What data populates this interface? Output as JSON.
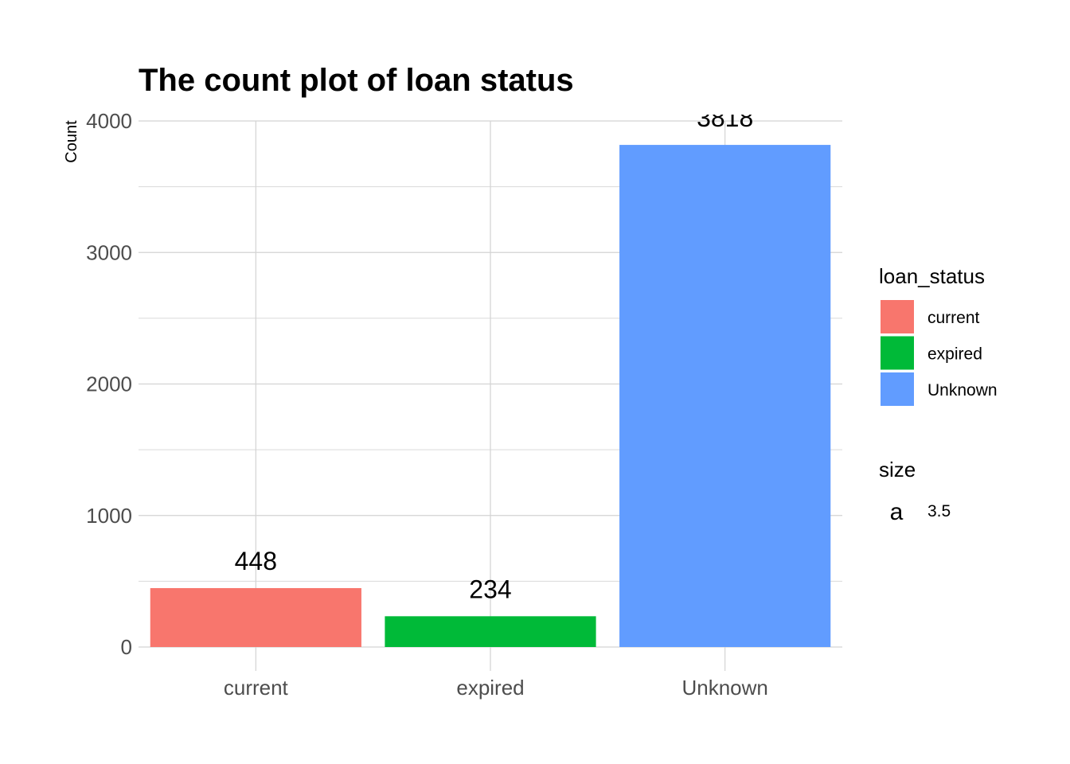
{
  "chart_data": {
    "type": "bar",
    "title": "The count plot of loan status",
    "xlabel": "",
    "ylabel": "Count",
    "categories": [
      "current",
      "expired",
      "Unknown"
    ],
    "values": [
      448,
      234,
      3818
    ],
    "data_labels": [
      "448",
      "234",
      "3818"
    ],
    "colors": [
      "#F8766D",
      "#00BA38",
      "#619CFF"
    ],
    "ylim": [
      0,
      4000
    ],
    "yticks": [
      0,
      1000,
      2000,
      3000,
      4000
    ],
    "grid": true,
    "legend": {
      "placement": "right",
      "fill_title": "loan_status",
      "fill_entries": [
        "current",
        "expired",
        "Unknown"
      ],
      "size_title": "size",
      "size_key_glyph": "a",
      "size_entry": "3.5"
    }
  }
}
